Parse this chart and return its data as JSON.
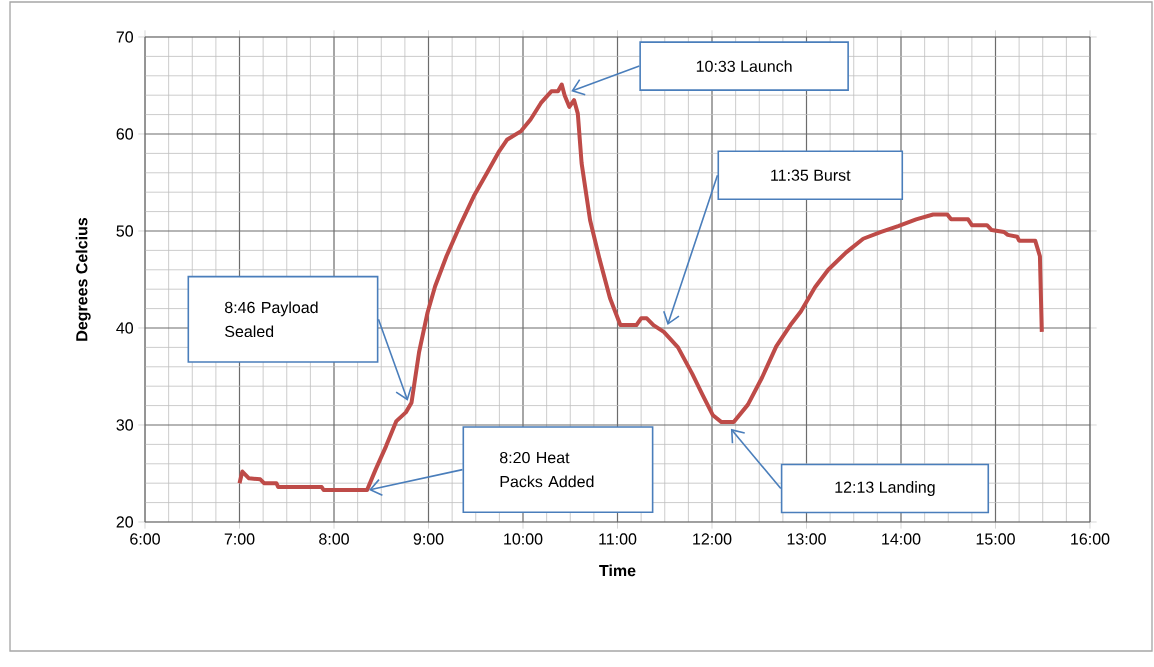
{
  "chart_data": {
    "type": "line",
    "xlabel": "Time",
    "ylabel": "Degrees Celcius",
    "x": [
      7.0,
      7.03,
      7.1,
      7.22,
      7.26,
      7.39,
      7.41,
      7.87,
      7.89,
      8.35,
      8.44,
      8.55,
      8.66,
      8.76,
      8.82,
      8.9,
      8.99,
      9.07,
      9.19,
      9.33,
      9.48,
      9.62,
      9.74,
      9.83,
      9.98,
      10.08,
      10.19,
      10.3,
      10.37,
      10.41,
      10.44,
      10.49,
      10.54,
      10.58,
      10.62,
      10.71,
      10.81,
      10.92,
      11.03,
      11.2,
      11.25,
      11.31,
      11.38,
      11.49,
      11.64,
      11.79,
      11.9,
      12.01,
      12.1,
      12.23,
      12.38,
      12.53,
      12.68,
      12.83,
      12.94,
      13.09,
      13.23,
      13.42,
      13.6,
      13.79,
      13.97,
      14.16,
      14.34,
      14.49,
      14.53,
      14.71,
      14.75,
      14.91,
      14.96,
      15.09,
      15.13,
      15.23,
      15.25,
      15.42,
      15.47,
      15.49
    ],
    "series": [
      {
        "color": "#be4b48",
        "values": [
          24.0,
          25.2,
          24.5,
          24.4,
          24.0,
          24.0,
          23.6,
          23.6,
          23.3,
          23.3,
          25.4,
          27.8,
          30.4,
          31.3,
          32.3,
          37.5,
          41.6,
          44.3,
          47.4,
          50.5,
          53.6,
          56.0,
          58.1,
          59.4,
          60.3,
          61.5,
          63.2,
          64.4,
          64.4,
          65.1,
          64.0,
          62.8,
          63.5,
          62.1,
          57.0,
          51.1,
          47.1,
          43.1,
          40.3,
          40.3,
          41.0,
          41.0,
          40.3,
          39.6,
          38.0,
          35.3,
          33.1,
          31.0,
          30.3,
          30.3,
          32.1,
          34.9,
          38.1,
          40.3,
          41.7,
          44.2,
          46.0,
          47.8,
          49.2,
          49.9,
          50.5,
          51.2,
          51.7,
          51.7,
          51.2,
          51.2,
          50.6,
          50.6,
          50.1,
          49.9,
          49.6,
          49.4,
          49.0,
          49.0,
          47.4,
          39.6
        ]
      }
    ],
    "xlim": [
      6,
      16
    ],
    "xticks": [
      {
        "value": 6,
        "label": "6:00"
      },
      {
        "value": 7,
        "label": "7:00"
      },
      {
        "value": 8,
        "label": "8:00"
      },
      {
        "value": 9,
        "label": "9:00"
      },
      {
        "value": 10,
        "label": "10:00"
      },
      {
        "value": 11,
        "label": "11:00"
      },
      {
        "value": 12,
        "label": "12:00"
      },
      {
        "value": 13,
        "label": "13:00"
      },
      {
        "value": 14,
        "label": "14:00"
      },
      {
        "value": 15,
        "label": "15:00"
      },
      {
        "value": 16,
        "label": "16:00"
      }
    ],
    "ylim": [
      20,
      70
    ],
    "yticks": [
      20,
      30,
      40,
      50,
      60,
      70
    ],
    "grid": true,
    "marker": "none",
    "line_style": "solid",
    "annotations": [
      "8:46 Payload Sealed",
      "8:20 Heat Packs Added",
      "10:33 Launch",
      "11:35 Burst",
      "12:13 Landing"
    ]
  }
}
